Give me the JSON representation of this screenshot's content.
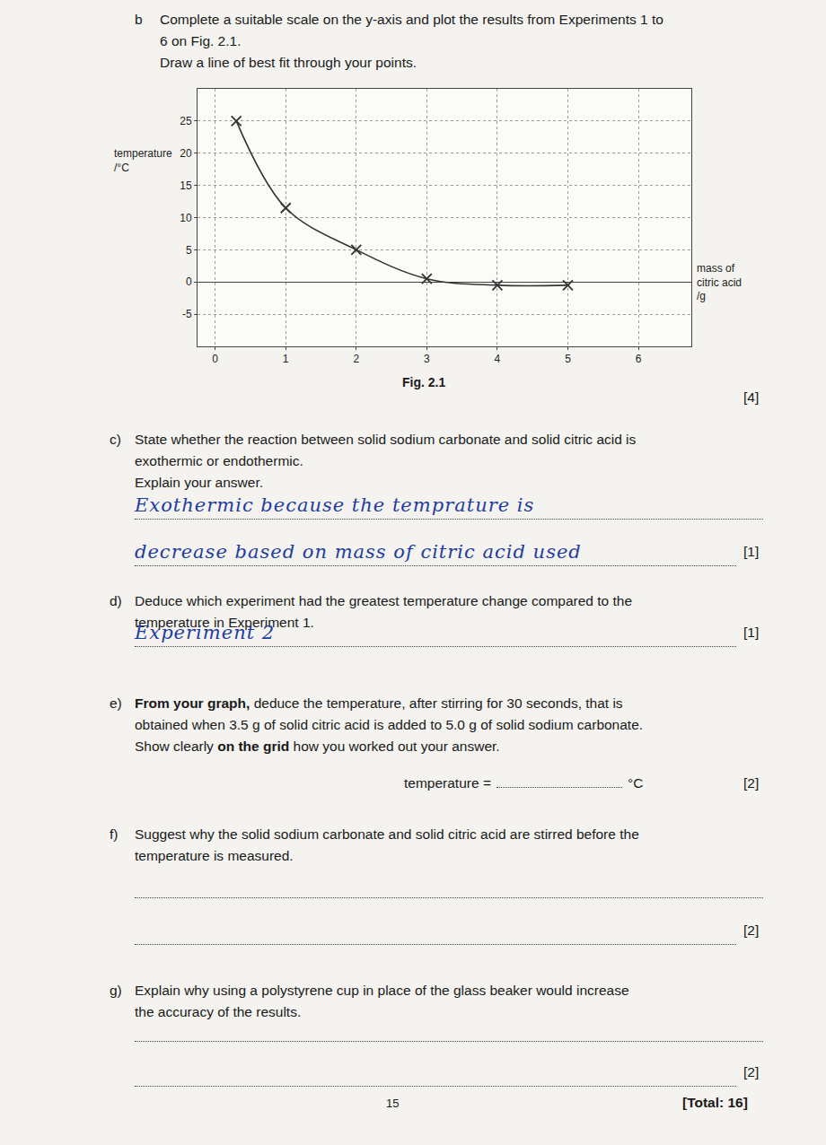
{
  "chart_data": {
    "type": "line",
    "x": [
      0.3,
      1,
      2,
      3,
      4,
      5
    ],
    "values": [
      25,
      11.5,
      5,
      0.5,
      -0.5,
      -0.5
    ],
    "color": "#333333",
    "marker": "x",
    "line_style": "spline",
    "xlim": [
      -0.25,
      6.75
    ],
    "ylim": [
      -10,
      30
    ],
    "xticks": [
      0,
      1,
      2,
      3,
      4,
      5,
      6
    ],
    "yticks": [
      -5,
      0,
      5,
      10,
      15,
      20,
      25
    ],
    "grid": true,
    "x_label": [
      "mass of",
      "citric acid",
      "/g"
    ],
    "y_label": [
      "temperature",
      "/°C"
    ]
  },
  "document": {
    "caption": "Fig. 2.1",
    "questions": [
      {
        "label": "b",
        "lines": [
          "Complete a suitable scale on the y-axis and plot the results from Experiments 1  to",
          "6 on Fig. 2.1.",
          "Draw a line of best fit through your points."
        ],
        "marks": "[4]"
      },
      {
        "label": "c)",
        "lines": [
          "State whether the reaction between solid sodium carbonate and solid citric acid is",
          "exothermic or endothermic.",
          "Explain your answer."
        ],
        "answers": [
          "Exothermic because the temprature is",
          "decrease based on mass of citric acid used"
        ],
        "marks": "[1]"
      },
      {
        "label": "d)",
        "lines": [
          "Deduce which experiment had the greatest temperature change compared to the",
          "temperature in Experiment 1."
        ],
        "answers": [
          "Experiment 2"
        ],
        "marks": "[1]"
      },
      {
        "label": "e)",
        "lines": [
          "From your graph, deduce the temperature, after stirring for 30 seconds, that is",
          "obtained when 3.5 g of solid citric acid is added to 5.0 g of solid sodium carbonate.",
          "Show clearly on the grid how you worked out your answer."
        ],
        "bold": [
          "From your graph,",
          "on the grid"
        ],
        "result": {
          "prefix": "temperature =",
          "unit": "°C"
        },
        "marks": "[2]"
      },
      {
        "label": "f)",
        "lines": [
          "Suggest why the solid sodium carbonate and solid citric acid are stirred before the",
          "temperature is measured."
        ],
        "marks": "[2]"
      },
      {
        "label": "g)",
        "lines": [
          "Explain why using a polystyrene cup in place of the glass beaker would increase",
          "the accuracy of the results."
        ],
        "marks": "[2]"
      }
    ],
    "footer": {
      "page": "15",
      "total": "[Total: 16]"
    }
  }
}
